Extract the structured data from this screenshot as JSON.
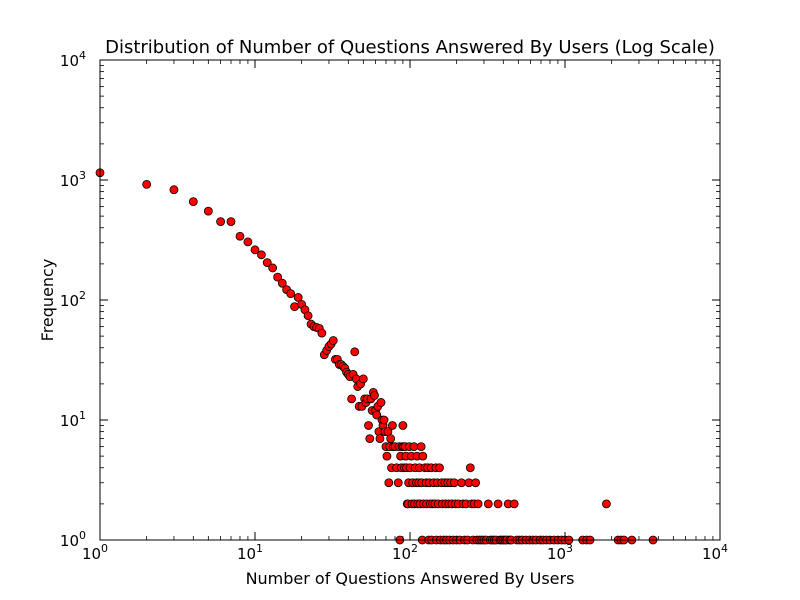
{
  "chart_data": {
    "type": "scatter",
    "title": "Distribution of Number of Questions Answered By Users (Log Scale)",
    "xlabel": "Number of Questions Answered By Users",
    "ylabel": "Frequency",
    "xscale": "log",
    "yscale": "log",
    "xlim": [
      1,
      10000
    ],
    "ylim": [
      1,
      10000
    ],
    "grid": false,
    "marker_color": "#ff0000",
    "marker_edge_color": "#000000",
    "x_ticks": [
      {
        "base": "10",
        "exp": "0",
        "value": 1
      },
      {
        "base": "10",
        "exp": "1",
        "value": 10
      },
      {
        "base": "10",
        "exp": "2",
        "value": 100
      },
      {
        "base": "10",
        "exp": "3",
        "value": 1000
      },
      {
        "base": "10",
        "exp": "4",
        "value": 10000
      }
    ],
    "y_ticks": [
      {
        "base": "10",
        "exp": "0",
        "value": 1
      },
      {
        "base": "10",
        "exp": "1",
        "value": 10
      },
      {
        "base": "10",
        "exp": "2",
        "value": 100
      },
      {
        "base": "10",
        "exp": "3",
        "value": 1000
      },
      {
        "base": "10",
        "exp": "4",
        "value": 10000
      }
    ],
    "points": [
      [
        1,
        1150
      ],
      [
        2,
        920
      ],
      [
        3,
        830
      ],
      [
        4,
        660
      ],
      [
        5,
        550
      ],
      [
        6,
        450
      ],
      [
        7,
        450
      ],
      [
        8,
        340
      ],
      [
        9,
        305
      ],
      [
        10,
        262
      ],
      [
        11,
        238
      ],
      [
        12,
        205
      ],
      [
        13,
        185
      ],
      [
        14,
        155
      ],
      [
        15,
        138
      ],
      [
        16,
        122
      ],
      [
        17,
        113
      ],
      [
        18,
        88
      ],
      [
        19,
        105
      ],
      [
        20,
        92
      ],
      [
        21,
        83
      ],
      [
        22,
        74
      ],
      [
        23,
        63
      ],
      [
        24,
        60
      ],
      [
        25,
        59
      ],
      [
        26,
        58
      ],
      [
        27,
        53
      ],
      [
        28,
        35
      ],
      [
        29,
        38
      ],
      [
        30,
        41
      ],
      [
        31,
        43
      ],
      [
        32,
        46
      ],
      [
        33,
        32
      ],
      [
        34,
        32
      ],
      [
        35,
        29
      ],
      [
        36,
        29
      ],
      [
        37,
        28
      ],
      [
        38,
        27
      ],
      [
        39,
        25
      ],
      [
        40,
        24
      ],
      [
        41,
        23
      ],
      [
        42,
        15
      ],
      [
        43,
        24
      ],
      [
        44,
        37
      ],
      [
        45,
        22
      ],
      [
        46,
        19
      ],
      [
        47,
        13
      ],
      [
        48,
        20
      ],
      [
        49,
        13
      ],
      [
        50,
        22
      ],
      [
        51,
        15
      ],
      [
        52,
        14
      ],
      [
        53,
        15
      ],
      [
        54,
        9
      ],
      [
        55,
        7
      ],
      [
        56,
        15
      ],
      [
        57,
        12
      ],
      [
        58,
        17
      ],
      [
        59,
        16
      ],
      [
        60,
        12
      ],
      [
        61,
        11
      ],
      [
        62,
        13
      ],
      [
        63,
        8
      ],
      [
        64,
        7
      ],
      [
        65,
        14
      ],
      [
        66,
        10
      ],
      [
        67,
        9
      ],
      [
        68,
        10
      ],
      [
        69,
        8
      ],
      [
        70,
        6
      ],
      [
        71,
        5
      ],
      [
        72,
        8
      ],
      [
        73,
        3
      ],
      [
        74,
        6
      ],
      [
        75,
        7
      ],
      [
        76,
        4
      ],
      [
        77,
        9
      ],
      [
        78,
        6
      ],
      [
        80,
        6
      ],
      [
        82,
        4
      ],
      [
        84,
        3
      ],
      [
        85,
        6
      ],
      [
        86,
        1
      ],
      [
        87,
        5
      ],
      [
        88,
        4
      ],
      [
        89,
        6
      ],
      [
        90,
        9
      ],
      [
        91,
        6
      ],
      [
        92,
        4
      ],
      [
        93,
        6
      ],
      [
        94,
        5
      ],
      [
        95,
        4
      ],
      [
        96,
        2
      ],
      [
        97,
        2
      ],
      [
        98,
        3
      ],
      [
        99,
        6
      ],
      [
        100,
        4
      ],
      [
        102,
        5
      ],
      [
        103,
        2
      ],
      [
        104,
        3
      ],
      [
        106,
        6
      ],
      [
        107,
        2
      ],
      [
        108,
        4
      ],
      [
        110,
        3
      ],
      [
        111,
        5
      ],
      [
        112,
        2
      ],
      [
        114,
        3
      ],
      [
        115,
        4
      ],
      [
        116,
        2
      ],
      [
        118,
        6
      ],
      [
        119,
        3
      ],
      [
        120,
        1
      ],
      [
        121,
        5
      ],
      [
        122,
        2
      ],
      [
        125,
        4
      ],
      [
        127,
        3
      ],
      [
        128,
        2
      ],
      [
        130,
        4
      ],
      [
        132,
        1
      ],
      [
        133,
        3
      ],
      [
        135,
        2
      ],
      [
        137,
        4
      ],
      [
        138,
        1
      ],
      [
        140,
        2
      ],
      [
        142,
        3
      ],
      [
        145,
        2
      ],
      [
        147,
        4
      ],
      [
        148,
        1
      ],
      [
        150,
        3
      ],
      [
        152,
        2
      ],
      [
        155,
        4
      ],
      [
        157,
        1
      ],
      [
        160,
        3
      ],
      [
        162,
        2
      ],
      [
        165,
        1
      ],
      [
        168,
        3
      ],
      [
        170,
        2
      ],
      [
        172,
        1
      ],
      [
        175,
        3
      ],
      [
        178,
        2
      ],
      [
        180,
        1
      ],
      [
        183,
        3
      ],
      [
        186,
        2
      ],
      [
        190,
        1
      ],
      [
        193,
        3
      ],
      [
        196,
        2
      ],
      [
        200,
        1
      ],
      [
        205,
        2
      ],
      [
        210,
        1
      ],
      [
        215,
        3
      ],
      [
        220,
        2
      ],
      [
        225,
        1
      ],
      [
        230,
        2
      ],
      [
        235,
        1
      ],
      [
        240,
        3
      ],
      [
        245,
        4
      ],
      [
        250,
        2
      ],
      [
        255,
        1
      ],
      [
        260,
        2
      ],
      [
        265,
        3
      ],
      [
        270,
        1
      ],
      [
        275,
        2
      ],
      [
        280,
        1
      ],
      [
        290,
        1
      ],
      [
        300,
        1
      ],
      [
        310,
        1
      ],
      [
        320,
        2
      ],
      [
        330,
        1
      ],
      [
        340,
        1
      ],
      [
        350,
        1
      ],
      [
        360,
        1
      ],
      [
        370,
        2
      ],
      [
        380,
        1
      ],
      [
        390,
        1
      ],
      [
        400,
        1
      ],
      [
        410,
        1
      ],
      [
        420,
        1
      ],
      [
        430,
        2
      ],
      [
        440,
        1
      ],
      [
        450,
        1
      ],
      [
        470,
        2
      ],
      [
        490,
        1
      ],
      [
        510,
        1
      ],
      [
        530,
        1
      ],
      [
        560,
        1
      ],
      [
        590,
        1
      ],
      [
        620,
        1
      ],
      [
        650,
        1
      ],
      [
        690,
        1
      ],
      [
        720,
        1
      ],
      [
        760,
        1
      ],
      [
        800,
        1
      ],
      [
        850,
        1
      ],
      [
        900,
        1
      ],
      [
        950,
        1
      ],
      [
        1000,
        1
      ],
      [
        1060,
        1
      ],
      [
        1300,
        1
      ],
      [
        1380,
        1
      ],
      [
        1450,
        1
      ],
      [
        1850,
        2
      ],
      [
        2200,
        1
      ],
      [
        2300,
        1
      ],
      [
        2400,
        1
      ],
      [
        2700,
        1
      ],
      [
        3700,
        1
      ]
    ]
  }
}
